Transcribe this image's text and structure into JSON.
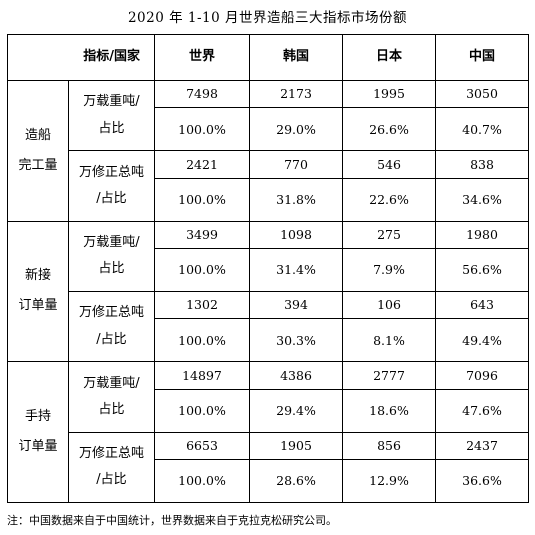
{
  "title": "2020 年 1-10 月世界造船三大指标市场份额",
  "header": {
    "indicator_country": "指标/国家",
    "countries": [
      "世界",
      "韩国",
      "日本",
      "中国"
    ]
  },
  "groups": [
    {
      "name_line1": "造船",
      "name_line2": "完工量",
      "rows": [
        {
          "unit_line1": "万载重吨/",
          "unit_line2": "占比",
          "abs": [
            "7498",
            "2173",
            "1995",
            "3050"
          ],
          "pct": [
            "100.0%",
            "29.0%",
            "26.6%",
            "40.7%"
          ]
        },
        {
          "unit_line1": "万修正总吨",
          "unit_line2": "/占比",
          "abs": [
            "2421",
            "770",
            "546",
            "838"
          ],
          "pct": [
            "100.0%",
            "31.8%",
            "22.6%",
            "34.6%"
          ]
        }
      ]
    },
    {
      "name_line1": "新接",
      "name_line2": "订单量",
      "rows": [
        {
          "unit_line1": "万载重吨/",
          "unit_line2": "占比",
          "abs": [
            "3499",
            "1098",
            "275",
            "1980"
          ],
          "pct": [
            "100.0%",
            "31.4%",
            "7.9%",
            "56.6%"
          ]
        },
        {
          "unit_line1": "万修正总吨",
          "unit_line2": "/占比",
          "abs": [
            "1302",
            "394",
            "106",
            "643"
          ],
          "pct": [
            "100.0%",
            "30.3%",
            "8.1%",
            "49.4%"
          ]
        }
      ]
    },
    {
      "name_line1": "手持",
      "name_line2": "订单量",
      "rows": [
        {
          "unit_line1": "万载重吨/",
          "unit_line2": "占比",
          "abs": [
            "14897",
            "4386",
            "2777",
            "7096"
          ],
          "pct": [
            "100.0%",
            "29.4%",
            "18.6%",
            "47.6%"
          ]
        },
        {
          "unit_line1": "万修正总吨",
          "unit_line2": "/占比",
          "abs": [
            "6653",
            "1905",
            "856",
            "2437"
          ],
          "pct": [
            "100.0%",
            "28.6%",
            "12.9%",
            "36.6%"
          ]
        }
      ]
    }
  ],
  "note": "注：中国数据来自于中国统计，世界数据来自于克拉克松研究公司。"
}
